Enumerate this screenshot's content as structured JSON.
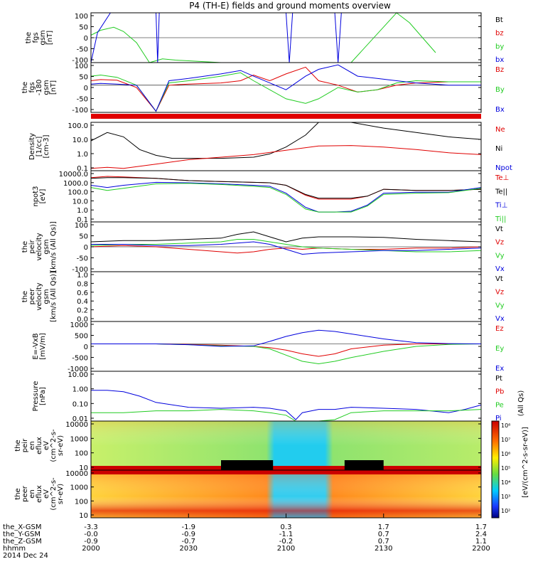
{
  "title": "P4 (TH-E) fields and ground moments overview",
  "colors": {
    "black": "#000000",
    "red": "#e00000",
    "green": "#22cc22",
    "blue": "#0000dd",
    "panel_border": "#000000",
    "spec_bg": "#9be86a"
  },
  "panels": [
    {
      "id": "fgs",
      "ylabel": [
        "the",
        "fgs",
        "gsm",
        "[nT]"
      ],
      "ticks": [
        "100",
        "50",
        "0",
        "-50",
        "-100"
      ],
      "yrange": [
        -100,
        100
      ],
      "legend": [
        {
          "text": "Bt",
          "color": "#000000"
        },
        {
          "text": "bz",
          "color": "#e00000"
        },
        {
          "text": "by",
          "color": "#22cc22"
        },
        {
          "text": "bx",
          "color": "#0000dd"
        }
      ]
    },
    {
      "id": "fgs_dsl",
      "ylabel": [
        "the",
        "fgs",
        "-180",
        "gsm",
        "[nT]"
      ],
      "ticks": [
        "100",
        "50",
        "0",
        "-50",
        "-100"
      ],
      "yrange": [
        -120,
        100
      ],
      "legend": [
        {
          "text": "Bz",
          "color": "#e00000"
        },
        {
          "text": "By",
          "color": "#22cc22"
        },
        {
          "text": "Bx",
          "color": "#0000dd"
        }
      ]
    },
    {
      "id": "density",
      "ylabel": [
        "Density",
        "[1/cc]",
        "[cm-3]"
      ],
      "ticks": [
        "100.0",
        "10.0",
        "1.0",
        "0.1"
      ],
      "yrange": [
        0.07,
        150
      ],
      "log": true,
      "legend": [
        {
          "text": "Ne",
          "color": "#e00000"
        },
        {
          "text": "Ni",
          "color": "#000000"
        },
        {
          "text": "Npot",
          "color": "#0000dd"
        }
      ]
    },
    {
      "id": "temperature",
      "ylabel": [
        "npot3",
        "[eV]"
      ],
      "ticks": [
        "10000.0",
        "1000.0",
        "100.0",
        "10.0",
        "1.0",
        "0.1"
      ],
      "yrange": [
        0.1,
        15000
      ],
      "log": true,
      "legend": [
        {
          "text": "Te⊥",
          "color": "#e00000"
        },
        {
          "text": "Te||",
          "color": "#000000"
        },
        {
          "text": "Ti⊥",
          "color": "#0000dd"
        },
        {
          "text": "Ti||",
          "color": "#22cc22"
        }
      ]
    },
    {
      "id": "peir_velocity",
      "ylabel": [
        "the",
        "peir",
        "velocity",
        "gsm",
        "[km/s (All Qs)]"
      ],
      "ticks": [
        "100",
        "50",
        "0",
        "-50",
        "-100"
      ],
      "yrange": [
        -100,
        100
      ],
      "legend": [
        {
          "text": "Vt",
          "color": "#000000"
        },
        {
          "text": "Vz",
          "color": "#e00000"
        },
        {
          "text": "Vy",
          "color": "#22cc22"
        },
        {
          "text": "Vx",
          "color": "#0000dd"
        }
      ]
    },
    {
      "id": "peer_velocity",
      "ylabel": [
        "the",
        "peer",
        "velocity",
        "gsm",
        "[km/s (All Qs)]"
      ],
      "ticks": [
        "1.0",
        "0.8",
        "0.6",
        "0.4",
        "0.2",
        "0.0"
      ],
      "yrange": [
        0,
        1
      ],
      "legend": [
        {
          "text": "Vt",
          "color": "#000000"
        },
        {
          "text": "Vz",
          "color": "#e00000"
        },
        {
          "text": "Vy",
          "color": "#22cc22"
        },
        {
          "text": "Vx",
          "color": "#0000dd"
        }
      ]
    },
    {
      "id": "efield",
      "ylabel": [
        "E=-VxB",
        "[mV/m]"
      ],
      "ticks": [
        "1000",
        "500",
        "0",
        "-500",
        "-1000"
      ],
      "yrange": [
        -1100,
        900
      ],
      "legend": [
        {
          "text": "Ez",
          "color": "#e00000"
        },
        {
          "text": "Ey",
          "color": "#22cc22"
        },
        {
          "text": "Ex",
          "color": "#0000dd"
        }
      ]
    },
    {
      "id": "pressure",
      "ylabel": [
        "Pressure",
        "[nPa]"
      ],
      "ticks": [
        "10.00",
        "1.00",
        "0.10",
        "0.01"
      ],
      "yrange": [
        0.008,
        20
      ],
      "log": true,
      "side_label": "(All Qs)",
      "legend": [
        {
          "text": "Pt",
          "color": "#000000"
        },
        {
          "text": "Pb",
          "color": "#e00000"
        },
        {
          "text": "Pe",
          "color": "#22cc22"
        },
        {
          "text": "Pi",
          "color": "#0000dd"
        }
      ]
    },
    {
      "id": "peir_spec",
      "ylabel": [
        "the",
        "peir",
        "en",
        "eflux",
        "eV",
        "(cm^2-s-",
        "sr-eV)"
      ],
      "ticks": [
        "10000",
        "1000",
        "100",
        "10"
      ],
      "spectrogram": true
    },
    {
      "id": "peer_spec",
      "ylabel": [
        "the",
        "peer",
        "en",
        "eflux",
        "eV",
        "(cm^2-s-",
        "sr-eV)"
      ],
      "ticks": [
        "10000",
        "1000",
        "100",
        "10"
      ],
      "spectrogram": true
    }
  ],
  "colorbar": {
    "ticks": [
      "10⁸",
      "10⁷",
      "10⁶",
      "10⁵",
      "10⁴",
      "10³",
      "10²"
    ],
    "label": "[eV/(cm^2-s-sr-eV)]"
  },
  "xaxis": {
    "row_labels": [
      "the_X-GSM",
      "the_Y-GSM",
      "the_Z-GSM",
      "hhmm",
      "2014 Dec 24"
    ],
    "columns": [
      {
        "x": "-3.3",
        "y": "-0.0",
        "z": "-0.9",
        "t": "2000"
      },
      {
        "x": "-1.9",
        "y": "-0.9",
        "z": "-0.7",
        "t": "2030"
      },
      {
        "x": "0.3",
        "y": "-1.1",
        "z": "-0.2",
        "t": "2100"
      },
      {
        "x": "1.7",
        "y": "0.7",
        "z": "0.7",
        "t": "2130"
      },
      {
        "x": "1.7",
        "y": "2.4",
        "z": "1.1",
        "t": "2200"
      }
    ]
  },
  "chart_data": {
    "type": "line",
    "title": "P4 (TH-E) fields and ground moments overview",
    "time_range_minutes": [
      0,
      120
    ],
    "time_tick_labels": [
      "2000",
      "2030",
      "2100",
      "2130",
      "2200"
    ],
    "series": [
      {
        "panel": "fgs",
        "name": "by",
        "color": "#22cc22",
        "x": [
          0,
          3,
          7,
          10,
          14,
          16,
          18,
          22,
          26,
          40,
          80,
          94,
          98,
          102,
          106
        ],
        "y": [
          10,
          30,
          42,
          25,
          -20,
          -60,
          -100,
          -85,
          -90,
          -100,
          -100,
          100,
          60,
          0,
          -60
        ]
      },
      {
        "panel": "fgs",
        "name": "bx",
        "color": "#0000dd",
        "x": [
          0,
          2,
          6,
          20,
          20.5,
          21,
          60,
          61,
          62,
          75,
          76,
          77,
          80
        ],
        "y": [
          -100,
          20,
          100,
          100,
          -100,
          100,
          100,
          -100,
          100,
          100,
          -100,
          100,
          100
        ]
      },
      {
        "panel": "fgs_dsl",
        "name": "Bz",
        "color": "#e00000",
        "x": [
          0,
          3,
          8,
          14,
          20,
          24,
          30,
          40,
          46,
          50,
          55,
          60,
          66,
          70,
          76,
          82,
          88,
          94,
          100,
          110,
          120
        ],
        "y": [
          20,
          25,
          22,
          -10,
          -115,
          0,
          5,
          10,
          20,
          45,
          20,
          50,
          80,
          20,
          0,
          -30,
          -20,
          0,
          10,
          15,
          15
        ]
      },
      {
        "panel": "fgs_dsl",
        "name": "By",
        "color": "#22cc22",
        "x": [
          0,
          3,
          8,
          14,
          20,
          24,
          30,
          40,
          46,
          50,
          55,
          60,
          66,
          70,
          76,
          82,
          88,
          94,
          100,
          110,
          120
        ],
        "y": [
          40,
          45,
          35,
          0,
          -115,
          10,
          20,
          40,
          55,
          20,
          -20,
          -60,
          -80,
          -60,
          -10,
          -30,
          -20,
          10,
          20,
          15,
          15
        ]
      },
      {
        "panel": "fgs_dsl",
        "name": "Bx",
        "color": "#0000dd",
        "x": [
          0,
          3,
          8,
          14,
          20,
          24,
          30,
          40,
          46,
          50,
          55,
          60,
          66,
          70,
          76,
          82,
          88,
          94,
          100,
          110,
          120
        ],
        "y": [
          5,
          8,
          5,
          0,
          -115,
          20,
          30,
          50,
          65,
          40,
          10,
          -20,
          40,
          70,
          90,
          40,
          30,
          20,
          10,
          0,
          0
        ]
      },
      {
        "panel": "density",
        "name": "Ni",
        "color": "#000000",
        "x": [
          0,
          5,
          10,
          15,
          20,
          25,
          30,
          40,
          50,
          55,
          60,
          66,
          70,
          80,
          90,
          100,
          110,
          120
        ],
        "y": [
          8,
          30,
          15,
          2,
          0.8,
          0.5,
          0.5,
          0.5,
          0.6,
          1.0,
          3,
          20,
          150,
          150,
          60,
          30,
          15,
          10
        ]
      },
      {
        "panel": "density",
        "name": "Ne",
        "color": "#e00000",
        "x": [
          0,
          5,
          10,
          20,
          30,
          40,
          50,
          60,
          70,
          80,
          90,
          100,
          110,
          120
        ],
        "y": [
          0.1,
          0.12,
          0.1,
          0.2,
          0.4,
          0.6,
          0.9,
          1.8,
          3.5,
          3.8,
          3,
          2,
          1.2,
          0.9
        ]
      },
      {
        "panel": "temperature",
        "name": "Te⊥",
        "color": "#e00000",
        "x": [
          0,
          5,
          10,
          20,
          30,
          40,
          50,
          55,
          60,
          66,
          70,
          75,
          80,
          85,
          90,
          100,
          110,
          120
        ],
        "y": [
          3000,
          4000,
          3500,
          2500,
          1500,
          1200,
          1000,
          900,
          500,
          50,
          20,
          20,
          20,
          40,
          200,
          150,
          150,
          200
        ]
      },
      {
        "panel": "temperature",
        "name": "Te||",
        "color": "#000000",
        "x": [
          0,
          5,
          10,
          20,
          30,
          40,
          50,
          55,
          60,
          66,
          70,
          75,
          80,
          85,
          90,
          100,
          110,
          120
        ],
        "y": [
          2500,
          3000,
          3000,
          2500,
          1500,
          1200,
          1000,
          900,
          500,
          60,
          25,
          25,
          25,
          40,
          200,
          150,
          150,
          200
        ]
      },
      {
        "panel": "temperature",
        "name": "Ti⊥",
        "color": "#0000dd",
        "x": [
          0,
          5,
          10,
          20,
          30,
          40,
          50,
          55,
          60,
          66,
          70,
          75,
          80,
          85,
          90,
          100,
          110,
          120
        ],
        "y": [
          500,
          300,
          500,
          1000,
          900,
          700,
          500,
          400,
          80,
          3,
          1,
          1,
          1.2,
          5,
          80,
          100,
          100,
          300
        ]
      },
      {
        "panel": "temperature",
        "name": "Ti||",
        "color": "#22cc22",
        "x": [
          0,
          5,
          10,
          20,
          30,
          40,
          50,
          55,
          60,
          66,
          70,
          75,
          80,
          85,
          90,
          100,
          110,
          120
        ],
        "y": [
          300,
          150,
          250,
          700,
          800,
          600,
          400,
          300,
          60,
          2,
          1,
          1,
          1,
          4,
          60,
          80,
          90,
          250
        ]
      },
      {
        "panel": "peir_velocity",
        "name": "Vt",
        "color": "#000000",
        "x": [
          0,
          10,
          20,
          30,
          40,
          45,
          50,
          55,
          60,
          65,
          70,
          80,
          90,
          100,
          110,
          120
        ],
        "y": [
          20,
          25,
          25,
          30,
          35,
          50,
          60,
          40,
          20,
          35,
          40,
          40,
          38,
          30,
          25,
          20
        ]
      },
      {
        "panel": "peir_velocity",
        "name": "Vz",
        "color": "#e00000",
        "x": [
          0,
          10,
          20,
          30,
          40,
          45,
          50,
          55,
          60,
          65,
          70,
          80,
          90,
          100,
          110,
          120
        ],
        "y": [
          0,
          5,
          0,
          -10,
          -20,
          -25,
          -20,
          -10,
          -5,
          -10,
          -5,
          -10,
          -10,
          -5,
          -5,
          0
        ]
      },
      {
        "panel": "peir_velocity",
        "name": "Vy",
        "color": "#22cc22",
        "x": [
          0,
          10,
          20,
          30,
          40,
          45,
          50,
          55,
          60,
          65,
          70,
          80,
          90,
          100,
          110,
          120
        ],
        "y": [
          5,
          10,
          10,
          15,
          20,
          30,
          30,
          20,
          10,
          0,
          -5,
          -10,
          -15,
          -20,
          -20,
          -15
        ]
      },
      {
        "panel": "peir_velocity",
        "name": "Vx",
        "color": "#0000dd",
        "x": [
          0,
          10,
          20,
          30,
          40,
          45,
          50,
          55,
          60,
          65,
          70,
          80,
          90,
          100,
          110,
          120
        ],
        "y": [
          10,
          10,
          5,
          5,
          10,
          15,
          20,
          10,
          -10,
          -30,
          -25,
          -20,
          -15,
          -15,
          -10,
          -5
        ]
      },
      {
        "panel": "efield",
        "name": "Ez",
        "color": "#e00000",
        "x": [
          0,
          10,
          20,
          30,
          40,
          50,
          55,
          60,
          65,
          70,
          75,
          80,
          90,
          100,
          110,
          120
        ],
        "y": [
          0,
          0,
          0,
          -20,
          -50,
          -100,
          -150,
          -250,
          -400,
          -500,
          -400,
          -200,
          -50,
          0,
          0,
          0
        ]
      },
      {
        "panel": "efield",
        "name": "Ey",
        "color": "#22cc22",
        "x": [
          0,
          10,
          20,
          30,
          40,
          50,
          55,
          60,
          65,
          70,
          75,
          80,
          90,
          100,
          110,
          120
        ],
        "y": [
          0,
          0,
          0,
          -30,
          -80,
          -100,
          -200,
          -450,
          -700,
          -800,
          -700,
          -550,
          -300,
          -100,
          -20,
          0
        ]
      },
      {
        "panel": "efield",
        "name": "Ex",
        "color": "#0000dd",
        "x": [
          0,
          10,
          20,
          30,
          40,
          50,
          55,
          60,
          65,
          70,
          75,
          80,
          90,
          100,
          110,
          120
        ],
        "y": [
          0,
          0,
          0,
          -30,
          -100,
          -80,
          100,
          300,
          450,
          550,
          500,
          400,
          200,
          50,
          10,
          0
        ]
      },
      {
        "panel": "pressure",
        "name": "Pi",
        "color": "#0000dd",
        "x": [
          0,
          5,
          10,
          15,
          20,
          30,
          40,
          50,
          55,
          60,
          63,
          65,
          70,
          75,
          80,
          90,
          100,
          110,
          115,
          120
        ],
        "y": [
          1.0,
          1.0,
          0.8,
          0.4,
          0.15,
          0.07,
          0.06,
          0.07,
          0.06,
          0.04,
          0.01,
          0.03,
          0.05,
          0.05,
          0.07,
          0.06,
          0.05,
          0.03,
          0.05,
          0.1
        ]
      },
      {
        "panel": "pressure",
        "name": "Pe",
        "color": "#22cc22",
        "x": [
          0,
          10,
          20,
          30,
          40,
          50,
          55,
          60,
          63,
          66,
          70,
          75,
          80,
          90,
          100,
          110,
          120
        ],
        "y": [
          0.03,
          0.03,
          0.04,
          0.04,
          0.05,
          0.04,
          0.03,
          0.02,
          0.008,
          0.008,
          0.008,
          0.01,
          0.03,
          0.04,
          0.04,
          0.04,
          0.05
        ]
      }
    ]
  }
}
